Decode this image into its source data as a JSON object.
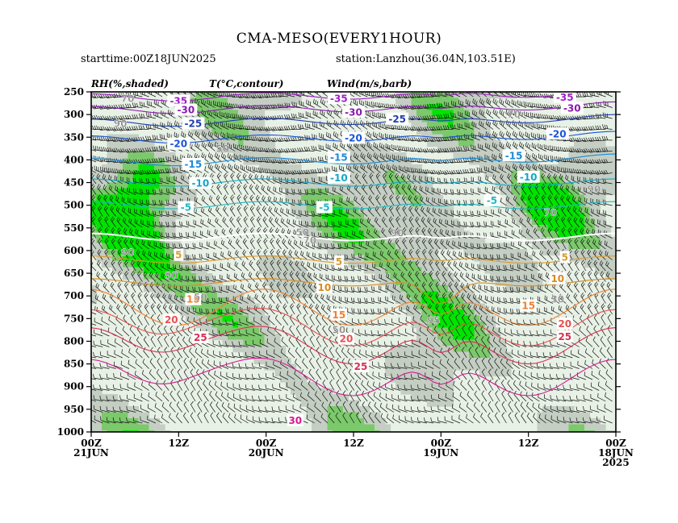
{
  "chart_data": {
    "type": "time-height cross section",
    "title": "CMA-MESO(EVERY1HOUR)",
    "subtitle_left": "starttime:00Z18JUN2025",
    "subtitle_right": "station:Lanzhou(36.04N,103.51E)",
    "legend": {
      "rh": "RH(%,shaded)",
      "temp": "T(°C,contour)",
      "wind": "Wind(m/s,barb)"
    },
    "y_axis": {
      "unit": "hPa",
      "ticks": [
        "250",
        "300",
        "350",
        "400",
        "450",
        "500",
        "550",
        "600",
        "650",
        "700",
        "750",
        "800",
        "850",
        "900",
        "950",
        "1000"
      ],
      "range": [
        250,
        1000
      ]
    },
    "x_axis": {
      "direction": "time decreasing to the right (21JUN 00Z on left, 18JUN 00Z on right)",
      "ticks": [
        {
          "hour": 72,
          "label": "00Z",
          "sub": "21JUN"
        },
        {
          "hour": 60,
          "label": "12Z",
          "sub": ""
        },
        {
          "hour": 48,
          "label": "00Z",
          "sub": "20JUN"
        },
        {
          "hour": 36,
          "label": "12Z",
          "sub": ""
        },
        {
          "hour": 24,
          "label": "00Z",
          "sub": "19JUN"
        },
        {
          "hour": 12,
          "label": "12Z",
          "sub": ""
        },
        {
          "hour": 0,
          "label": "00Z",
          "sub": "18JUN",
          "sub2": "2025"
        }
      ],
      "range_hours": [
        72,
        0
      ]
    },
    "rh_shading_levels": [
      {
        "threshold": "50",
        "color": "#e8f1e6"
      },
      {
        "threshold": "70",
        "color": "#c4cec3"
      },
      {
        "threshold": "80",
        "color": "#7bc96b"
      },
      {
        "threshold": "90",
        "color": "#00e400"
      }
    ],
    "temperature_contours": [
      {
        "value": -35,
        "color": "#a020c8"
      },
      {
        "value": -30,
        "color": "#8a1ab0"
      },
      {
        "value": -25,
        "color": "#2040b0"
      },
      {
        "value": -20,
        "color": "#1a54d8"
      },
      {
        "value": -15,
        "color": "#1a8ad8"
      },
      {
        "value": -10,
        "color": "#10a8c8"
      },
      {
        "value": -5,
        "color": "#20b8c0"
      },
      {
        "value": 0,
        "color": "#ffffff"
      },
      {
        "value": 5,
        "color": "#d89a30"
      },
      {
        "value": 10,
        "color": "#d88a20"
      },
      {
        "value": 15,
        "color": "#f08030"
      },
      {
        "value": 20,
        "color": "#e85050"
      },
      {
        "value": 25,
        "color": "#d83050"
      },
      {
        "value": 30,
        "color": "#d81890"
      }
    ],
    "contour_labels": [
      {
        "text": "-35",
        "hour": 60,
        "p": 270,
        "color": "#a020c8"
      },
      {
        "text": "-35",
        "hour": 38,
        "p": 265,
        "color": "#a020c8"
      },
      {
        "text": "-35",
        "hour": 7,
        "p": 262,
        "color": "#a020c8"
      },
      {
        "text": "-30",
        "hour": 59,
        "p": 290,
        "color": "#8a1ab0"
      },
      {
        "text": "-30",
        "hour": 36,
        "p": 295,
        "color": "#8a1ab0"
      },
      {
        "text": "-30",
        "hour": 6,
        "p": 286,
        "color": "#8a1ab0"
      },
      {
        "text": "-25",
        "hour": 58,
        "p": 320,
        "color": "#2040b0"
      },
      {
        "text": "-25",
        "hour": 30,
        "p": 310,
        "color": "#2040b0"
      },
      {
        "text": "-20",
        "hour": 60,
        "p": 365,
        "color": "#1a54d8"
      },
      {
        "text": "-20",
        "hour": 36,
        "p": 352,
        "color": "#1a54d8"
      },
      {
        "text": "-20",
        "hour": 8,
        "p": 343,
        "color": "#1a54d8"
      },
      {
        "text": "-15",
        "hour": 58,
        "p": 410,
        "color": "#1a8ad8"
      },
      {
        "text": "-15",
        "hour": 38,
        "p": 395,
        "color": "#1a8ad8"
      },
      {
        "text": "-15",
        "hour": 14,
        "p": 391,
        "color": "#1a8ad8"
      },
      {
        "text": "-10",
        "hour": 57,
        "p": 452,
        "color": "#10a8c8"
      },
      {
        "text": "-10",
        "hour": 38,
        "p": 440,
        "color": "#10a8c8"
      },
      {
        "text": "-10",
        "hour": 12,
        "p": 438,
        "color": "#10a8c8"
      },
      {
        "text": "-5",
        "hour": 59,
        "p": 505,
        "color": "#20b8c0"
      },
      {
        "text": "-5",
        "hour": 40,
        "p": 505,
        "color": "#20b8c0"
      },
      {
        "text": "-5",
        "hour": 17,
        "p": 490,
        "color": "#20b8c0"
      },
      {
        "text": "5",
        "hour": 60,
        "p": 610,
        "color": "#d89a30"
      },
      {
        "text": "5",
        "hour": 38,
        "p": 625,
        "color": "#d89a30"
      },
      {
        "text": "5",
        "hour": 7,
        "p": 615,
        "color": "#d89a30"
      },
      {
        "text": "10",
        "hour": 40,
        "p": 682,
        "color": "#d88a20"
      },
      {
        "text": "10",
        "hour": 8,
        "p": 662,
        "color": "#d88a20"
      },
      {
        "text": "15",
        "hour": 58,
        "p": 708,
        "color": "#f08030"
      },
      {
        "text": "15",
        "hour": 38,
        "p": 742,
        "color": "#f08030"
      },
      {
        "text": "15",
        "hour": 12,
        "p": 722,
        "color": "#f08030"
      },
      {
        "text": "20",
        "hour": 61,
        "p": 753,
        "color": "#e85050"
      },
      {
        "text": "20",
        "hour": 37,
        "p": 795,
        "color": "#e85050"
      },
      {
        "text": "20",
        "hour": 7,
        "p": 762,
        "color": "#e85050"
      },
      {
        "text": "25",
        "hour": 57,
        "p": 792,
        "color": "#d83050"
      },
      {
        "text": "25",
        "hour": 35,
        "p": 856,
        "color": "#d83050"
      },
      {
        "text": "25",
        "hour": 7,
        "p": 790,
        "color": "#d83050"
      },
      {
        "text": "30",
        "hour": 44,
        "p": 975,
        "color": "#d81890"
      }
    ],
    "rh_labels": [
      {
        "text": "70",
        "hour": 67,
        "p": 265
      },
      {
        "text": "90",
        "hour": 68,
        "p": 320
      },
      {
        "text": "90",
        "hour": 67,
        "p": 605
      },
      {
        "text": "90",
        "hour": 61,
        "p": 655
      },
      {
        "text": "50",
        "hour": 57,
        "p": 703
      },
      {
        "text": "50",
        "hour": 54,
        "p": 375
      },
      {
        "text": "50",
        "hour": 43,
        "p": 560
      },
      {
        "text": "70",
        "hour": 42,
        "p": 578
      },
      {
        "text": "90",
        "hour": 30,
        "p": 562
      },
      {
        "text": "95",
        "hour": 25,
        "p": 755
      },
      {
        "text": "50",
        "hour": 38,
        "p": 775
      },
      {
        "text": "90",
        "hour": 3,
        "p": 465
      },
      {
        "text": "70",
        "hour": 14,
        "p": 300
      },
      {
        "text": "30",
        "hour": 8,
        "p": 708
      },
      {
        "text": "70",
        "hour": 9,
        "p": 517
      }
    ]
  }
}
